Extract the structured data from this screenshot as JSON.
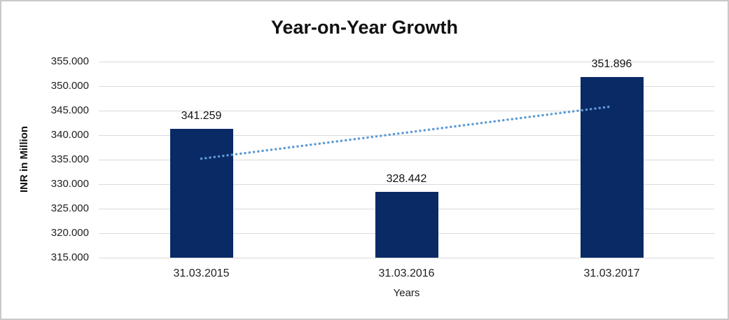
{
  "chart_data": {
    "type": "bar",
    "title": "Year-on-Year Growth",
    "xlabel": "Years",
    "ylabel": "INR in Million",
    "categories": [
      "31.03.2015",
      "31.03.2016",
      "31.03.2017"
    ],
    "values": [
      341.259,
      328.442,
      351.896
    ],
    "data_labels": [
      "341.259",
      "328.442",
      "351.896"
    ],
    "ylim": [
      315,
      355
    ],
    "y_tick_step": 5,
    "y_tick_labels": [
      "355.000",
      "350.000",
      "345.000",
      "340.000",
      "335.000",
      "330.000",
      "325.000",
      "320.000",
      "315.000"
    ],
    "grid": "horizontal",
    "legend": "none",
    "colors": {
      "bar": "#0A2A66",
      "trendline": "#5B9BD5",
      "gridline": "#D9D9D9"
    },
    "trendline": {
      "type": "linear",
      "style": "dotted",
      "start_value": 335.2,
      "end_value": 345.85
    }
  }
}
